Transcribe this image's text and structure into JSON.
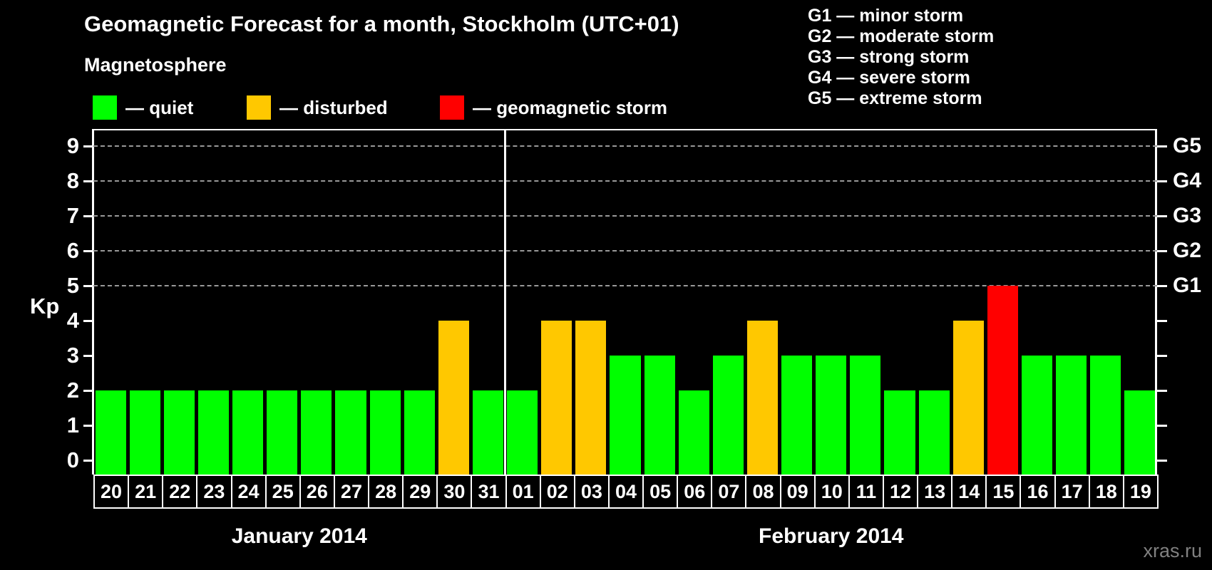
{
  "header": {
    "title": "Geomagnetic Forecast for a month, Stockholm (UTC+01)"
  },
  "g_legend": {
    "items": [
      "G1 — minor storm",
      "G2 — moderate storm",
      "G3 — strong storm",
      "G4 — severe storm",
      "G5 — extreme storm"
    ]
  },
  "legend": {
    "heading": "Magnetosphere",
    "items": [
      {
        "label": "— quiet",
        "color": "#00ff00",
        "status": "quiet"
      },
      {
        "label": "— disturbed",
        "color": "#ffc800",
        "status": "disturbed"
      },
      {
        "label": "— geomagnetic storm",
        "color": "#ff0000",
        "status": "storm"
      }
    ]
  },
  "watermark": "xras.ru",
  "chart_data": {
    "type": "bar",
    "title": "Geomagnetic Forecast for a month, Stockholm (UTC+01)",
    "xlabel": "",
    "ylabel": "Kp",
    "ylim": [
      0,
      9
    ],
    "yticks": [
      0,
      1,
      2,
      3,
      4,
      5,
      6,
      7,
      8,
      9
    ],
    "grid": "dashed horizontal lines at Kp 5-9 only",
    "gridline_levels": [
      5,
      6,
      7,
      8,
      9
    ],
    "right_axis": [
      {
        "kp": 5,
        "label": "G1"
      },
      {
        "kp": 6,
        "label": "G2"
      },
      {
        "kp": 7,
        "label": "G3"
      },
      {
        "kp": 8,
        "label": "G4"
      },
      {
        "kp": 9,
        "label": "G5"
      }
    ],
    "status_colors": {
      "quiet": "#00ff00",
      "disturbed": "#ffc800",
      "storm": "#ff0000"
    },
    "months": [
      {
        "label": "January 2014",
        "days": [
          {
            "d": "20",
            "kp": 2,
            "status": "quiet"
          },
          {
            "d": "21",
            "kp": 2,
            "status": "quiet"
          },
          {
            "d": "22",
            "kp": 2,
            "status": "quiet"
          },
          {
            "d": "23",
            "kp": 2,
            "status": "quiet"
          },
          {
            "d": "24",
            "kp": 2,
            "status": "quiet"
          },
          {
            "d": "25",
            "kp": 2,
            "status": "quiet"
          },
          {
            "d": "26",
            "kp": 2,
            "status": "quiet"
          },
          {
            "d": "27",
            "kp": 2,
            "status": "quiet"
          },
          {
            "d": "28",
            "kp": 2,
            "status": "quiet"
          },
          {
            "d": "29",
            "kp": 2,
            "status": "quiet"
          },
          {
            "d": "30",
            "kp": 4,
            "status": "disturbed"
          },
          {
            "d": "31",
            "kp": 2,
            "status": "quiet"
          }
        ]
      },
      {
        "label": "February 2014",
        "days": [
          {
            "d": "01",
            "kp": 2,
            "status": "quiet"
          },
          {
            "d": "02",
            "kp": 4,
            "status": "disturbed"
          },
          {
            "d": "03",
            "kp": 4,
            "status": "disturbed"
          },
          {
            "d": "04",
            "kp": 3,
            "status": "quiet"
          },
          {
            "d": "05",
            "kp": 3,
            "status": "quiet"
          },
          {
            "d": "06",
            "kp": 2,
            "status": "quiet"
          },
          {
            "d": "07",
            "kp": 3,
            "status": "quiet"
          },
          {
            "d": "08",
            "kp": 4,
            "status": "disturbed"
          },
          {
            "d": "09",
            "kp": 3,
            "status": "quiet"
          },
          {
            "d": "10",
            "kp": 3,
            "status": "quiet"
          },
          {
            "d": "11",
            "kp": 3,
            "status": "quiet"
          },
          {
            "d": "12",
            "kp": 2,
            "status": "quiet"
          },
          {
            "d": "13",
            "kp": 2,
            "status": "quiet"
          },
          {
            "d": "14",
            "kp": 4,
            "status": "disturbed"
          },
          {
            "d": "15",
            "kp": 5,
            "status": "storm"
          },
          {
            "d": "16",
            "kp": 3,
            "status": "quiet"
          },
          {
            "d": "17",
            "kp": 3,
            "status": "quiet"
          },
          {
            "d": "18",
            "kp": 3,
            "status": "quiet"
          },
          {
            "d": "19",
            "kp": 2,
            "status": "quiet"
          }
        ]
      }
    ]
  }
}
